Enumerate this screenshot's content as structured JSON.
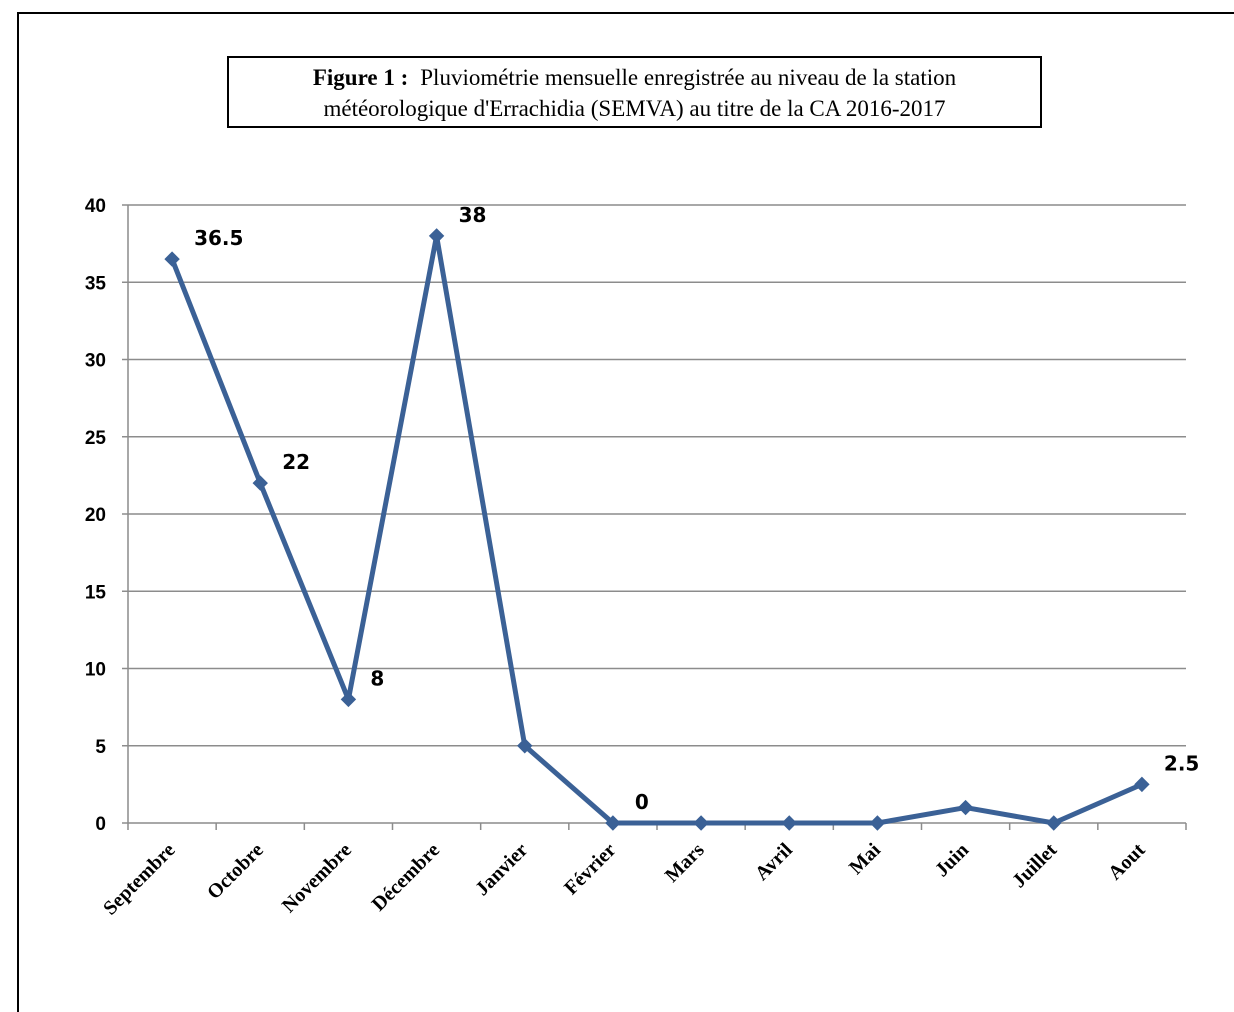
{
  "figure": {
    "prefix": "Figure 1 :",
    "title_line1": "Pluviométrie mensuelle enregistrée  au niveau de la station",
    "title_line2": "météorologique d'Errachidia (SEMVA) au titre de la CA 2016-2017"
  },
  "chart_data": {
    "type": "line",
    "title": "Pluviométrie mensuelle enregistrée  au niveau de la station météorologique d'Errachidia (SEMVA) au titre de la CA 2016-2017",
    "xlabel": "",
    "ylabel": "",
    "categories": [
      "Septembre",
      "Octobre",
      "Novembre",
      "Décembre",
      "Janvier",
      "Février",
      "Mars",
      "Avril",
      "Mai",
      "Juin",
      "Juillet",
      "Aout"
    ],
    "series": [
      {
        "values": [
          36.5,
          22,
          8,
          38,
          5,
          0,
          0,
          0,
          0,
          1,
          0,
          2.5
        ]
      }
    ],
    "data_labels": [
      {
        "index": 0,
        "text": "36.5"
      },
      {
        "index": 1,
        "text": "22"
      },
      {
        "index": 2,
        "text": "8"
      },
      {
        "index": 3,
        "text": "38"
      },
      {
        "index": 5,
        "text": "0"
      },
      {
        "index": 11,
        "text": "2.5"
      }
    ],
    "ylim": [
      0,
      40
    ],
    "yticks": [
      0,
      5,
      10,
      15,
      20,
      25,
      30,
      35,
      40
    ],
    "grid": true,
    "legend": "none",
    "line_color": "#3b6196"
  }
}
